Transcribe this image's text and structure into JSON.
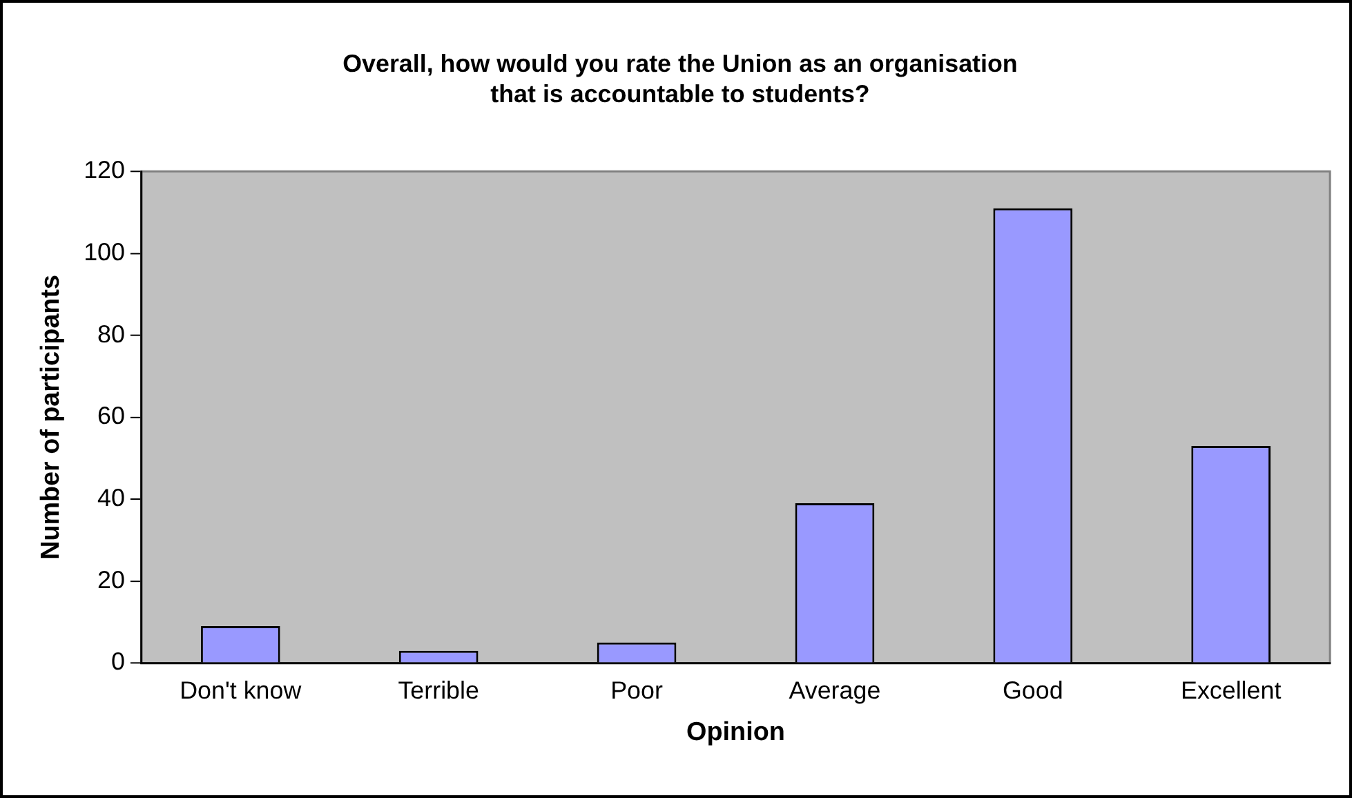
{
  "chart_data": {
    "type": "bar",
    "title": "Overall, how would you rate the Union as an organisation\nthat is accountable to students?",
    "xlabel": "Opinion",
    "ylabel": "Number of participants",
    "categories": [
      "Don't know",
      "Terrible",
      "Poor",
      "Average",
      "Good",
      "Excellent"
    ],
    "values": [
      9,
      3,
      5,
      39,
      111,
      53
    ],
    "color": "#9999ff",
    "ylim": [
      0,
      120
    ],
    "yticks": [
      0,
      20,
      40,
      60,
      80,
      100,
      120
    ],
    "grid": false,
    "legend": false
  }
}
